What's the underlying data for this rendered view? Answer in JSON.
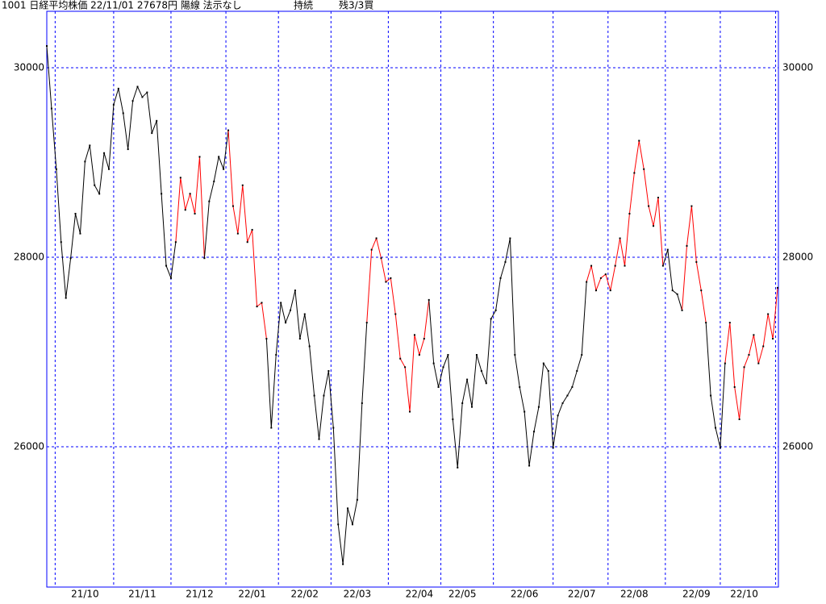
{
  "chart_data": {
    "type": "line",
    "title": "1001 日経平均株価 22/11/01 27678円 陽線 法示なし",
    "status": "持続",
    "position": "残3/3買",
    "categories": [
      null,
      null,
      null,
      null,
      null,
      null,
      null,
      null,
      "21/10",
      null,
      null,
      null,
      null,
      null,
      null,
      null,
      null,
      null,
      null,
      null,
      "21/11",
      null,
      null,
      null,
      null,
      null,
      null,
      null,
      null,
      null,
      null,
      null,
      "21/12",
      null,
      null,
      null,
      null,
      null,
      null,
      null,
      null,
      null,
      null,
      "22/01",
      null,
      null,
      null,
      null,
      null,
      null,
      null,
      null,
      null,
      null,
      "22/02",
      null,
      null,
      null,
      null,
      null,
      null,
      null,
      null,
      null,
      null,
      "22/03",
      null,
      null,
      null,
      null,
      null,
      null,
      null,
      null,
      null,
      null,
      null,
      null,
      "22/04",
      null,
      null,
      null,
      null,
      null,
      null,
      null,
      null,
      "22/05",
      null,
      null,
      null,
      null,
      null,
      null,
      null,
      null,
      null,
      null,
      null,
      null,
      "22/06",
      null,
      null,
      null,
      null,
      null,
      null,
      null,
      null,
      null,
      null,
      null,
      "22/07",
      null,
      null,
      null,
      null,
      null,
      null,
      null,
      null,
      null,
      null,
      "22/08",
      null,
      null,
      null,
      null,
      null,
      null,
      null,
      null,
      null,
      null,
      null,
      null,
      "22/09",
      null,
      null,
      null,
      null,
      null,
      null,
      null,
      null,
      null,
      "22/10",
      null,
      null,
      null,
      null,
      null,
      null,
      null
    ],
    "series": [
      {
        "values": [
          30230,
          29570,
          28930,
          28160,
          27570,
          27990,
          28460,
          28250,
          29010,
          29180,
          28760,
          28670,
          29100,
          28930,
          29610,
          29780,
          29520,
          29140,
          29650,
          29800,
          29690,
          29740,
          29310,
          29440,
          28670,
          27910,
          27780,
          28160,
          28840,
          28500,
          28670,
          28460,
          29060,
          27990,
          28590,
          28800,
          29060,
          28930,
          29340,
          28540,
          28250,
          28760,
          28160,
          28290,
          27480,
          27520,
          27140,
          26200,
          26970,
          27520,
          27310,
          27440,
          27650,
          27140,
          27400,
          27060,
          26540,
          26080,
          26540,
          26800,
          26200,
          25180,
          24760,
          25350,
          25180,
          25440,
          26460,
          27310,
          28080,
          28200,
          27990,
          27740,
          27780,
          27400,
          26930,
          26840,
          26370,
          27180,
          26970,
          27140,
          27550,
          26880,
          26630,
          26840,
          26970,
          26290,
          25780,
          26460,
          26710,
          26420,
          26970,
          26800,
          26670,
          27350,
          27440,
          27780,
          27950,
          28200,
          26970,
          26630,
          26370,
          25800,
          26160,
          26420,
          26880,
          26800,
          25990,
          26330,
          26460,
          26540,
          26630,
          26800,
          26970,
          27740,
          27910,
          27650,
          27780,
          27820,
          27650,
          27910,
          28200,
          27910,
          28460,
          28890,
          29230,
          28930,
          28540,
          28330,
          28630,
          27910,
          28080,
          27650,
          27610,
          27440,
          28120,
          28540,
          27950,
          27650,
          27310,
          26540,
          26200,
          25990,
          26880,
          27310,
          26630,
          26290,
          26840,
          26970,
          27180,
          26880,
          27060,
          27400,
          27140,
          27678
        ],
        "colors": [
          "#000",
          "#000",
          "#000",
          "#000",
          "#000",
          "#000",
          "#000",
          "#000",
          "#000",
          "#000",
          "#000",
          "#000",
          "#000",
          "#000",
          "#000",
          "#000",
          "#000",
          "#000",
          "#000",
          "#000",
          "#000",
          "#000",
          "#000",
          "#000",
          "#000",
          "#000",
          "#000",
          "#000",
          "#f00",
          "#f00",
          "#f00",
          "#f00",
          "#f00",
          "#f00",
          "#000",
          "#000",
          "#000",
          "#000",
          "#000",
          "#f00",
          "#f00",
          "#f00",
          "#f00",
          "#f00",
          "#f00",
          "#f00",
          "#f00",
          "#000",
          "#000",
          "#000",
          "#000",
          "#000",
          "#000",
          "#000",
          "#000",
          "#000",
          "#000",
          "#000",
          "#000",
          "#000",
          "#000",
          "#000",
          "#000",
          "#000",
          "#000",
          "#000",
          "#000",
          "#000",
          "#f00",
          "#f00",
          "#f00",
          "#f00",
          "#f00",
          "#f00",
          "#f00",
          "#f00",
          "#f00",
          "#f00",
          "#f00",
          "#f00",
          "#f00",
          "#000",
          "#000",
          "#000",
          "#000",
          "#000",
          "#000",
          "#000",
          "#000",
          "#000",
          "#000",
          "#000",
          "#000",
          "#000",
          "#000",
          "#000",
          "#000",
          "#000",
          "#000",
          "#000",
          "#000",
          "#000",
          "#000",
          "#000",
          "#000",
          "#000",
          "#000",
          "#000",
          "#000",
          "#000",
          "#000",
          "#000",
          "#000",
          "#000",
          "#f00",
          "#f00",
          "#f00",
          "#f00",
          "#f00",
          "#f00",
          "#f00",
          "#f00",
          "#f00",
          "#f00",
          "#f00",
          "#f00",
          "#f00",
          "#f00",
          "#f00",
          "#f00",
          "#000",
          "#000",
          "#000",
          "#000",
          "#f00",
          "#f00",
          "#f00",
          "#f00",
          "#f00",
          "#000",
          "#000",
          "#000",
          "#000",
          "#f00",
          "#f00",
          "#f00",
          "#f00",
          "#f00",
          "#f00",
          "#f00",
          "#f00",
          "#f00",
          "#f00",
          "#f00"
        ]
      }
    ],
    "ylim": [
      24519,
      30596
    ],
    "yticks": [
      26000,
      28000,
      30000
    ],
    "grid": true,
    "grid_color": "#0000ff",
    "frame_color": "#0000ff",
    "dot_color": "#000"
  }
}
